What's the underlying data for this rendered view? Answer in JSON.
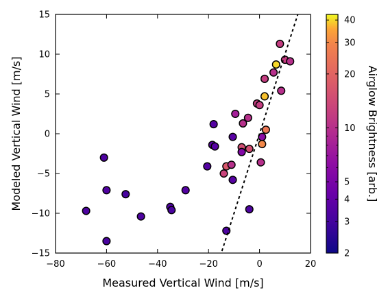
{
  "chart_data": {
    "type": "scatter",
    "title": "",
    "xlabel": "Measured Vertical Wind [m/s]",
    "ylabel": "Modeled Vertical Wind [m/s]",
    "xlim": [
      -80,
      20
    ],
    "ylim": [
      -15,
      15
    ],
    "xticks": [
      -80,
      -60,
      -40,
      -20,
      0,
      20
    ],
    "yticks": [
      -15,
      -10,
      -5,
      0,
      5,
      10,
      15
    ],
    "grid": false,
    "reference_line": {
      "style": "dashed",
      "color": "#000000",
      "description": "y = x"
    },
    "colorbar": {
      "label": "Airglow Brightness [arb.]",
      "scale": "log",
      "min": 2,
      "max": 43,
      "colormap": "plasma",
      "ticks": [
        2,
        3,
        4,
        5,
        10,
        20,
        30,
        40
      ]
    },
    "points": [
      {
        "x": -68,
        "y": -9.7,
        "c": 3.3
      },
      {
        "x": -61,
        "y": -3.0,
        "c": 3.3
      },
      {
        "x": -60,
        "y": -7.1,
        "c": 3.4
      },
      {
        "x": -60,
        "y": -13.5,
        "c": 3.2
      },
      {
        "x": -52.5,
        "y": -7.6,
        "c": 3.1
      },
      {
        "x": -46.5,
        "y": -10.4,
        "c": 3.3
      },
      {
        "x": -35,
        "y": -9.2,
        "c": 3.3
      },
      {
        "x": -34.5,
        "y": -9.6,
        "c": 3.2
      },
      {
        "x": -29,
        "y": -7.1,
        "c": 3.5
      },
      {
        "x": -20.5,
        "y": -4.1,
        "c": 3.5
      },
      {
        "x": -18.5,
        "y": -1.4,
        "c": 3.6
      },
      {
        "x": -18,
        "y": 1.2,
        "c": 3.5
      },
      {
        "x": -17.5,
        "y": -1.6,
        "c": 3.6
      },
      {
        "x": -14,
        "y": -5.0,
        "c": 13
      },
      {
        "x": -13,
        "y": -4.1,
        "c": 17
      },
      {
        "x": -13,
        "y": -12.2,
        "c": 3.3
      },
      {
        "x": -11,
        "y": -3.9,
        "c": 10
      },
      {
        "x": -10.5,
        "y": -0.4,
        "c": 3.7
      },
      {
        "x": -10.5,
        "y": -5.8,
        "c": 3.6
      },
      {
        "x": -9.5,
        "y": 2.5,
        "c": 8
      },
      {
        "x": -7,
        "y": -1.7,
        "c": 15
      },
      {
        "x": -7,
        "y": -2.3,
        "c": 5.5
      },
      {
        "x": -6.5,
        "y": 1.3,
        "c": 10
      },
      {
        "x": -4.5,
        "y": 2.0,
        "c": 10
      },
      {
        "x": -4,
        "y": -1.9,
        "c": 15
      },
      {
        "x": -4,
        "y": -9.5,
        "c": 3.3
      },
      {
        "x": -1,
        "y": 3.8,
        "c": 12
      },
      {
        "x": 0,
        "y": 3.6,
        "c": 12
      },
      {
        "x": 0.5,
        "y": -3.6,
        "c": 10
      },
      {
        "x": 1,
        "y": -0.4,
        "c": 6
      },
      {
        "x": 1,
        "y": -1.3,
        "c": 30
      },
      {
        "x": 2,
        "y": 4.7,
        "c": 38
      },
      {
        "x": 2,
        "y": 6.9,
        "c": 12
      },
      {
        "x": 2.5,
        "y": 0.5,
        "c": 25
      },
      {
        "x": 5.5,
        "y": 7.7,
        "c": 10
      },
      {
        "x": 6.5,
        "y": 8.7,
        "c": 40
      },
      {
        "x": 8,
        "y": 11.3,
        "c": 12
      },
      {
        "x": 8.5,
        "y": 5.4,
        "c": 10
      },
      {
        "x": 10,
        "y": 9.3,
        "c": 12
      },
      {
        "x": 12,
        "y": 9.1,
        "c": 10
      }
    ]
  }
}
